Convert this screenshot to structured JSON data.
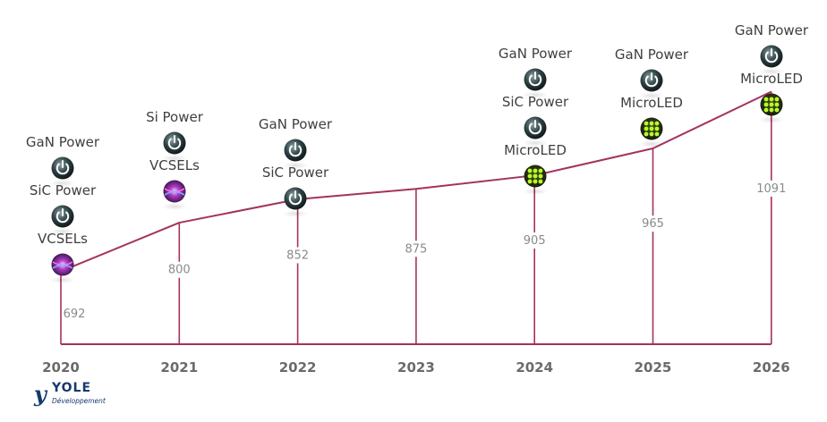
{
  "chart_data": {
    "type": "line",
    "title": "",
    "xlabel": "",
    "ylabel": "",
    "categories": [
      "2020",
      "2021",
      "2022",
      "2023",
      "2024",
      "2025",
      "2026"
    ],
    "values": [
      692,
      800,
      852,
      875,
      905,
      965,
      1091
    ],
    "ylim": [
      600,
      1100
    ],
    "grid": false,
    "line_color": "#a4325f",
    "technologies": [
      [
        "GaN Power",
        "SiC Power",
        "VCSELs"
      ],
      [
        "Si Power",
        "VCSELs"
      ],
      [
        "GaN Power",
        "SiC Power"
      ],
      [],
      [
        "GaN Power",
        "SiC Power",
        "MicroLED"
      ],
      [
        "GaN Power",
        "MicroLED"
      ],
      [
        "GaN Power",
        "MicroLED"
      ]
    ]
  },
  "icons": {
    "GaN Power": "power-icon",
    "SiC Power": "power-icon",
    "Si Power": "power-icon",
    "VCSELs": "vcsel-laser-icon",
    "MicroLED": "microled-grid-icon"
  },
  "logo": {
    "mark": "y",
    "name": "YOLE",
    "sub": "Développement"
  }
}
